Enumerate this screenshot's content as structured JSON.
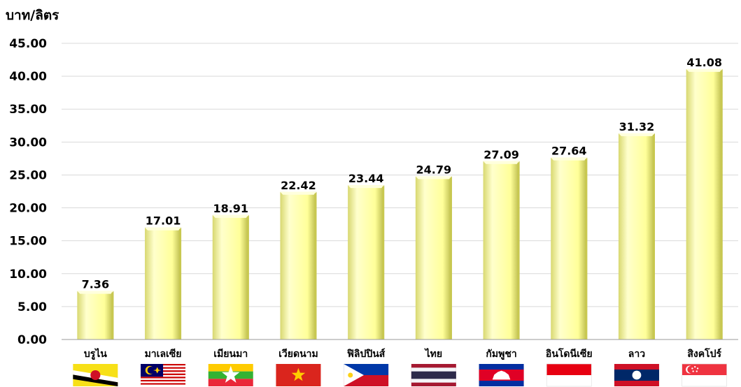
{
  "chart_data": {
    "type": "bar",
    "ylabel": "บาท/ลิตร",
    "ylim": [
      0,
      45
    ],
    "yticks": [
      "0.00",
      "5.00",
      "10.00",
      "15.00",
      "20.00",
      "25.00",
      "30.00",
      "35.00",
      "40.00",
      "45.00"
    ],
    "grid": true,
    "legend": "none",
    "categories": [
      "บรูไน",
      "มาเลเซีย",
      "เมียนมา",
      "เวียดนาม",
      "ฟิลิปปินส์",
      "ไทย",
      "กัมพูชา",
      "อินโดนีเซีย",
      "ลาว",
      "สิงคโปร์"
    ],
    "values": [
      7.36,
      17.01,
      18.91,
      22.42,
      23.44,
      24.79,
      27.09,
      27.64,
      31.32,
      41.08
    ],
    "data_labels": [
      "7.36",
      "17.01",
      "18.91",
      "22.42",
      "23.44",
      "24.79",
      "27.09",
      "27.64",
      "31.32",
      "41.08"
    ],
    "flags": [
      "brunei-flag-icon",
      "malaysia-flag-icon",
      "myanmar-flag-icon",
      "vietnam-flag-icon",
      "philippines-flag-icon",
      "thailand-flag-icon",
      "cambodia-flag-icon",
      "indonesia-flag-icon",
      "laos-flag-icon",
      "singapore-flag-icon"
    ],
    "colors": {
      "bar_light": "#ffffcc",
      "bar_main": "#ffff99",
      "bar_shadow": "#c8c850",
      "grid": "#d9d9d9"
    }
  }
}
